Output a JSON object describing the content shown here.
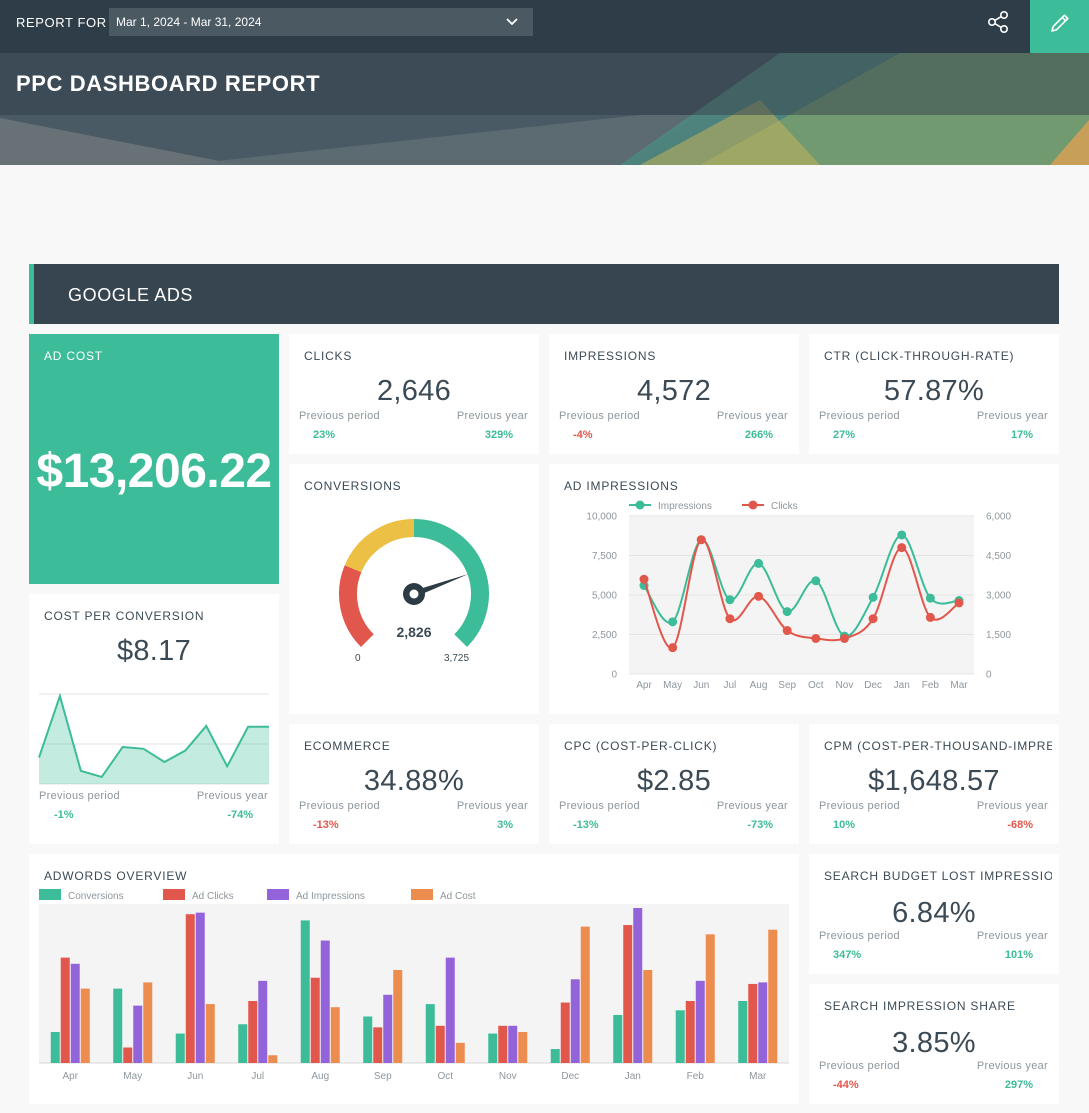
{
  "header": {
    "report_for_label": "REPORT FOR",
    "date_range": "Mar 1, 2024 - Mar 31, 2024",
    "title": "PPC DASHBOARD REPORT"
  },
  "section": {
    "title": "GOOGLE ADS"
  },
  "ad_cost": {
    "title": "AD COST",
    "value": "$13,206.22"
  },
  "comparison_labels": {
    "previous_period": "Previous period",
    "previous_year": "Previous year"
  },
  "kpis": {
    "clicks": {
      "title": "CLICKS",
      "value": "2,646",
      "prev_period": "23%",
      "prev_year": "329%"
    },
    "impressions": {
      "title": "IMPRESSIONS",
      "value": "4,572",
      "prev_period": "-4%",
      "prev_year": "266%"
    },
    "ctr": {
      "title": "CTR (CLICK-THROUGH-RATE)",
      "value": "57.87%",
      "prev_period": "27%",
      "prev_year": "17%"
    },
    "cost_per_conversion": {
      "title": "COST PER CONVERSION",
      "value": "$8.17",
      "prev_period": "-1%",
      "prev_year": "-74%"
    },
    "ecommerce": {
      "title": "ECOMMERCE",
      "value": "34.88%",
      "prev_period": "-13%",
      "prev_year": "3%"
    },
    "cpc": {
      "title": "CPC (COST-PER-CLICK)",
      "value": "$2.85",
      "prev_period": "-13%",
      "prev_year": "-73%"
    },
    "cpm": {
      "title": "CPM (COST-PER-THOUSAND-IMPRESSIONS)",
      "value": "$1,648.57",
      "prev_period": "10%",
      "prev_year": "-68%"
    },
    "search_budget_lost": {
      "title": "SEARCH BUDGET LOST IMPRESSION SHARE",
      "value": "6.84%",
      "prev_period": "347%",
      "prev_year": "101%"
    },
    "search_impression_share": {
      "title": "SEARCH IMPRESSION SHARE",
      "value": "3.85%",
      "prev_period": "-44%",
      "prev_year": "297%"
    }
  },
  "conversions": {
    "title": "CONVERSIONS",
    "value": "2,826",
    "min_label": "0",
    "max_label": "3,725"
  },
  "colors": {
    "green": "#3cbc98",
    "red": "#e2574c",
    "yellow": "#ecbf45",
    "purple": "#9364d9",
    "orange": "#ec8c4e",
    "dark": "#36454f"
  },
  "chart_data": [
    {
      "type": "area",
      "title": "COST PER CONVERSION",
      "values": [
        0.3,
        1.0,
        0.15,
        0.08,
        0.42,
        0.4,
        0.25,
        0.38,
        0.66,
        0.2,
        0.65,
        0.65
      ],
      "ylim": [
        0,
        1
      ]
    },
    {
      "type": "gauge",
      "title": "CONVERSIONS",
      "value": 2826,
      "min": 0,
      "max": 3725,
      "bands": [
        {
          "color": "#e2574c",
          "to": 0.25
        },
        {
          "color": "#ecbf45",
          "to": 0.5
        },
        {
          "color": "#3cbc98",
          "to": 1.0
        }
      ]
    },
    {
      "type": "line",
      "title": "AD IMPRESSIONS",
      "categories": [
        "Apr",
        "May",
        "Jun",
        "Jul",
        "Aug",
        "Sep",
        "Oct",
        "Nov",
        "Dec",
        "Jan",
        "Feb",
        "Mar"
      ],
      "series": [
        {
          "name": "Impressions",
          "axis": "left",
          "color": "#3cbc98",
          "values": [
            5600,
            3300,
            8500,
            4700,
            7000,
            3950,
            5900,
            2400,
            4850,
            8800,
            4800,
            4650
          ]
        },
        {
          "name": "Clicks",
          "axis": "right",
          "color": "#e2574c",
          "values": [
            3600,
            1000,
            5100,
            2100,
            2950,
            1650,
            1350,
            1350,
            2100,
            4800,
            2150,
            2700
          ]
        }
      ],
      "y_left": {
        "lim": [
          0,
          10000
        ],
        "ticks": [
          "0",
          "2,500",
          "5,000",
          "7,500",
          "10,000"
        ]
      },
      "y_right": {
        "lim": [
          0,
          6000
        ],
        "ticks": [
          "0",
          "1,500",
          "3,000",
          "4,500",
          "6,000"
        ]
      },
      "legend": "top-left"
    },
    {
      "type": "bar",
      "title": "ADWORDS OVERVIEW",
      "categories": [
        "Apr",
        "May",
        "Jun",
        "Jul",
        "Aug",
        "Sep",
        "Oct",
        "Nov",
        "Dec",
        "Jan",
        "Feb",
        "Mar"
      ],
      "series": [
        {
          "name": "Conversions",
          "color": "#3cbc98",
          "values": [
            20,
            48,
            19,
            25,
            92,
            30,
            38,
            19,
            9,
            31,
            34,
            40
          ]
        },
        {
          "name": "Ad Clicks",
          "color": "#e2574c",
          "values": [
            68,
            10,
            96,
            40,
            55,
            23,
            24,
            24,
            39,
            89,
            40,
            51
          ]
        },
        {
          "name": "Ad Impressions",
          "color": "#9364d9",
          "values": [
            64,
            37,
            97,
            53,
            79,
            44,
            68,
            24,
            54,
            100,
            53,
            52
          ]
        },
        {
          "name": "Ad Cost",
          "color": "#ec8c4e",
          "values": [
            48,
            52,
            38,
            5,
            36,
            60,
            13,
            20,
            88,
            60,
            83,
            86
          ]
        }
      ],
      "ylim": [
        0,
        100
      ],
      "legend": "top-left"
    }
  ]
}
